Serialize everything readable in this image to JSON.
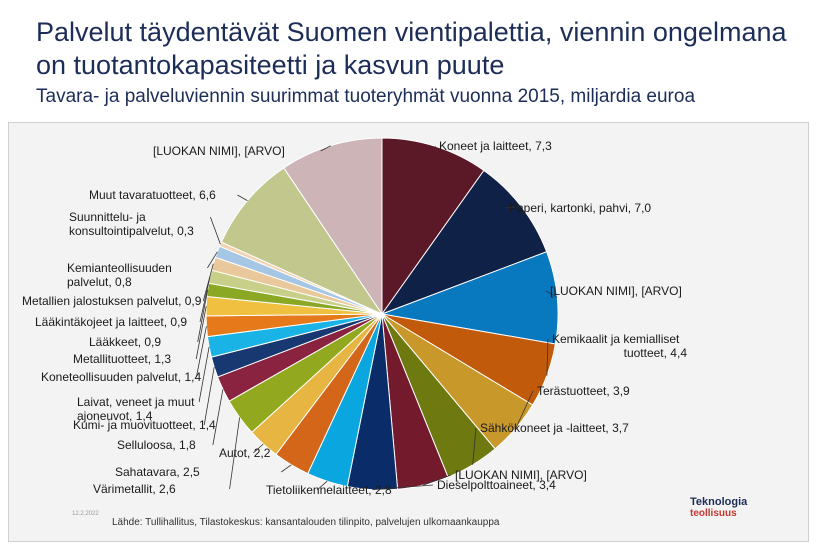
{
  "header": {
    "title": "Palvelut täydentävät Suomen vientipalettia, viennin ongelmana on tuotantokapasiteetti ja kasvun puute",
    "subtitle": "Tavara- ja palveluviennin suurimmat tuoteryhmät vuonna 2015, miljardia euroa"
  },
  "footer": {
    "date": "12.2.2022",
    "source": "Lähde: Tullihallitus, Tilastokeskus: kansantalouden tilinpito, palvelujen ulkomaankauppa",
    "logo_line1": "Teknologia",
    "logo_line2": "teollisuus"
  },
  "chart_data": {
    "type": "pie",
    "title": "Tavara- ja palveluviennin suurimmat tuoteryhmät vuonna 2015, miljardia euroa",
    "unit": "miljardia euroa",
    "start_angle_deg": 0,
    "direction": "clockwise",
    "slices": [
      {
        "label": "Koneet ja laitteet, 7,3",
        "value": 7.3,
        "color": "#5b1827"
      },
      {
        "label": "Paperi, kartonki, pahvi, 7,0",
        "value": 7.0,
        "color": "#0f2147"
      },
      {
        "label": "[LUOKAN NIMI], [ARVO]",
        "value": 6.3,
        "color": "#0878bf"
      },
      {
        "label": "Kemikaalit ja kemialliset tuotteet, 4,4",
        "value": 4.4,
        "color": "#c25a0b"
      },
      {
        "label": "Terästuotteet, 3,9",
        "value": 3.9,
        "color": "#c9982b"
      },
      {
        "label": "Sähkökoneet ja -laitteet, 3,7",
        "value": 3.7,
        "color": "#6e7a10"
      },
      {
        "label": "[LUOKAN NIMI], [ARVO]",
        "value": 3.5,
        "color": "#741a2d"
      },
      {
        "label": "Dieselpolttoaineet, 3,4",
        "value": 3.4,
        "color": "#0a2d6a"
      },
      {
        "label": "Tietoliikennelaitteet, 2,8",
        "value": 2.8,
        "color": "#0aa6df"
      },
      {
        "label": "Sahatavara, 2,5",
        "value": 2.5,
        "color": "#d4661a"
      },
      {
        "label": "Autot, 2,2",
        "value": 2.2,
        "color": "#e6b542"
      },
      {
        "label": "Värimetallit, 2,6",
        "value": 2.6,
        "color": "#92a81e"
      },
      {
        "label": "Selluloosa, 1,8",
        "value": 1.8,
        "color": "#8a2340"
      },
      {
        "label": "Kumi- ja muovituotteet, 1,4",
        "value": 1.4,
        "color": "#173870"
      },
      {
        "label": "Laivat, veneet ja muut ajoneuvot, 1,4",
        "value": 1.4,
        "color": "#1ab3e6"
      },
      {
        "label": "Koneteollisuuden palvelut, 1,4",
        "value": 1.4,
        "color": "#e67a1a"
      },
      {
        "label": "Metallituotteet, 1,3",
        "value": 1.3,
        "color": "#f0c040"
      },
      {
        "label": "Lääkkeet, 0,9",
        "value": 0.9,
        "color": "#8aa824"
      },
      {
        "label": "Lääkintäkojeet ja laitteet, 0,9",
        "value": 0.9,
        "color": "#c8cf88"
      },
      {
        "label": "Metallien jalostuksen palvelut, 0,9",
        "value": 0.9,
        "color": "#e9c99b"
      },
      {
        "label": "Kemianteollisuuden palvelut, 0,8",
        "value": 0.8,
        "color": "#a6c6e6"
      },
      {
        "label": "Suunnittelu- ja konsultointipalvelut, 0,3",
        "value": 0.3,
        "color": "#f4d2b0"
      },
      {
        "label": "Muut tavaratuotteet, 6,6",
        "value": 6.6,
        "color": "#c2c88d"
      },
      {
        "label": "[LUOKAN NIMI], [ARVO]",
        "value": 7.0,
        "color": "#cdb4b6"
      }
    ]
  }
}
